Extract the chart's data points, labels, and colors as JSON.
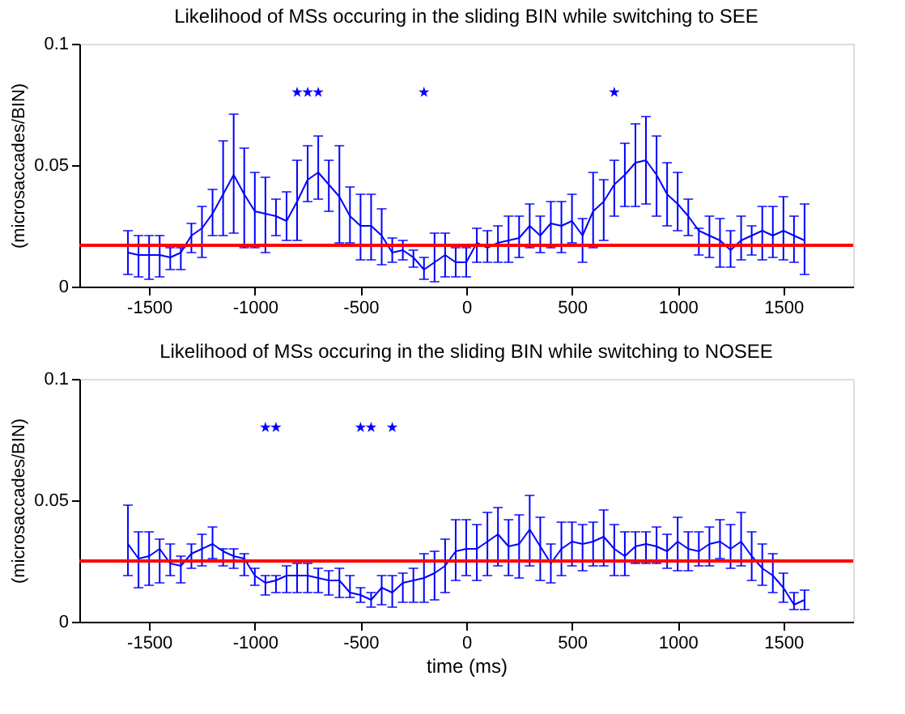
{
  "chart_data": [
    {
      "type": "line",
      "title": "Likelihood of MSs occuring in the sliding BIN while switching to SEE",
      "ylabel": "(microsaccades/BIN)",
      "xlim": [
        -1830,
        1830
      ],
      "xticks": [
        -1500,
        -1000,
        -500,
        0,
        500,
        1000,
        1500
      ],
      "ylim": [
        0,
        0.1
      ],
      "yticks": [
        0,
        0.05,
        0.1
      ],
      "grid": false,
      "ref_lines": [
        {
          "axis": "y",
          "value": 0.017,
          "color": "#ff0000",
          "line_style": "solid"
        }
      ],
      "series": [
        {
          "type": "line",
          "color": "#0000ff",
          "marker": "none",
          "line_style": "solid",
          "x": [
            -1600,
            -1550,
            -1500,
            -1450,
            -1400,
            -1350,
            -1300,
            -1250,
            -1200,
            -1150,
            -1100,
            -1050,
            -1000,
            -950,
            -900,
            -850,
            -800,
            -750,
            -700,
            -650,
            -600,
            -550,
            -500,
            -450,
            -400,
            -350,
            -300,
            -250,
            -200,
            -150,
            -100,
            -50,
            0,
            50,
            100,
            150,
            200,
            250,
            300,
            350,
            400,
            450,
            500,
            550,
            600,
            650,
            700,
            750,
            800,
            850,
            900,
            950,
            1000,
            1050,
            1100,
            1150,
            1200,
            1250,
            1300,
            1350,
            1400,
            1450,
            1500,
            1550,
            1600
          ],
          "values": [
            0.014,
            0.013,
            0.013,
            0.013,
            0.012,
            0.014,
            0.021,
            0.024,
            0.03,
            0.038,
            0.046,
            0.038,
            0.031,
            0.03,
            0.029,
            0.027,
            0.035,
            0.044,
            0.047,
            0.042,
            0.037,
            0.029,
            0.025,
            0.025,
            0.021,
            0.014,
            0.015,
            0.012,
            0.007,
            0.01,
            0.013,
            0.01,
            0.01,
            0.018,
            0.016,
            0.018,
            0.019,
            0.02,
            0.025,
            0.021,
            0.026,
            0.025,
            0.027,
            0.021,
            0.031,
            0.035,
            0.042,
            0.046,
            0.051,
            0.052,
            0.046,
            0.038,
            0.034,
            0.029,
            0.023,
            0.021,
            0.019,
            0.015,
            0.019,
            0.021,
            0.023,
            0.021,
            0.023,
            0.021,
            0.019
          ],
          "errors": [
            [
              0.005,
              0.023
            ],
            [
              0.004,
              0.021
            ],
            [
              0.003,
              0.021
            ],
            [
              0.004,
              0.021
            ],
            [
              0.007,
              0.016
            ],
            [
              0.007,
              0.016
            ],
            [
              0.014,
              0.026
            ],
            [
              0.012,
              0.033
            ],
            [
              0.021,
              0.04
            ],
            [
              0.021,
              0.06
            ],
            [
              0.022,
              0.071
            ],
            [
              0.016,
              0.057
            ],
            [
              0.016,
              0.047
            ],
            [
              0.014,
              0.045
            ],
            [
              0.021,
              0.036
            ],
            [
              0.019,
              0.039
            ],
            [
              0.019,
              0.052
            ],
            [
              0.035,
              0.058
            ],
            [
              0.036,
              0.062
            ],
            [
              0.031,
              0.052
            ],
            [
              0.018,
              0.058
            ],
            [
              0.018,
              0.041
            ],
            [
              0.011,
              0.038
            ],
            [
              0.011,
              0.038
            ],
            [
              0.009,
              0.032
            ],
            [
              0.01,
              0.02
            ],
            [
              0.011,
              0.019
            ],
            [
              0.008,
              0.015
            ],
            [
              0.003,
              0.012
            ],
            [
              0.002,
              0.022
            ],
            [
              0.004,
              0.022
            ],
            [
              0.004,
              0.016
            ],
            [
              0.004,
              0.016
            ],
            [
              0.01,
              0.024
            ],
            [
              0.01,
              0.023
            ],
            [
              0.01,
              0.025
            ],
            [
              0.01,
              0.029
            ],
            [
              0.012,
              0.029
            ],
            [
              0.016,
              0.034
            ],
            [
              0.014,
              0.029
            ],
            [
              0.016,
              0.035
            ],
            [
              0.014,
              0.035
            ],
            [
              0.018,
              0.038
            ],
            [
              0.01,
              0.028
            ],
            [
              0.016,
              0.047
            ],
            [
              0.019,
              0.044
            ],
            [
              0.029,
              0.052
            ],
            [
              0.033,
              0.059
            ],
            [
              0.033,
              0.067
            ],
            [
              0.034,
              0.07
            ],
            [
              0.029,
              0.062
            ],
            [
              0.025,
              0.051
            ],
            [
              0.023,
              0.047
            ],
            [
              0.021,
              0.036
            ],
            [
              0.013,
              0.024
            ],
            [
              0.012,
              0.029
            ],
            [
              0.008,
              0.028
            ],
            [
              0.008,
              0.023
            ],
            [
              0.011,
              0.029
            ],
            [
              0.013,
              0.025
            ],
            [
              0.011,
              0.033
            ],
            [
              0.012,
              0.033
            ],
            [
              0.011,
              0.037
            ],
            [
              0.01,
              0.029
            ],
            [
              0.005,
              0.034
            ]
          ]
        },
        {
          "type": "scatter",
          "color": "#0000ff",
          "marker": "star",
          "x": [
            -800,
            -750,
            -700,
            -200,
            700
          ],
          "values": [
            0.08,
            0.08,
            0.08,
            0.08,
            0.08
          ]
        }
      ]
    },
    {
      "type": "line",
      "title": "Likelihood of MSs occuring in the sliding BIN while switching to NOSEE",
      "xlabel": "time (ms)",
      "ylabel": "(microsaccades/BIN)",
      "xlim": [
        -1830,
        1830
      ],
      "xticks": [
        -1500,
        -1000,
        -500,
        0,
        500,
        1000,
        1500
      ],
      "ylim": [
        0,
        0.1
      ],
      "yticks": [
        0,
        0.05,
        0.1
      ],
      "grid": false,
      "ref_lines": [
        {
          "axis": "y",
          "value": 0.025,
          "color": "#ff0000",
          "line_style": "solid"
        }
      ],
      "series": [
        {
          "type": "line",
          "color": "#0000ff",
          "marker": "none",
          "line_style": "solid",
          "x": [
            -1600,
            -1550,
            -1500,
            -1450,
            -1400,
            -1350,
            -1300,
            -1250,
            -1200,
            -1150,
            -1100,
            -1050,
            -1000,
            -950,
            -900,
            -850,
            -800,
            -750,
            -700,
            -650,
            -600,
            -550,
            -500,
            -450,
            -400,
            -350,
            -300,
            -250,
            -200,
            -150,
            -100,
            -50,
            0,
            50,
            100,
            150,
            200,
            250,
            300,
            350,
            400,
            450,
            500,
            550,
            600,
            650,
            700,
            750,
            800,
            850,
            900,
            950,
            1000,
            1050,
            1100,
            1150,
            1200,
            1250,
            1300,
            1350,
            1400,
            1450,
            1500,
            1550,
            1600
          ],
          "values": [
            0.032,
            0.026,
            0.027,
            0.03,
            0.024,
            0.023,
            0.028,
            0.03,
            0.032,
            0.029,
            0.027,
            0.026,
            0.019,
            0.016,
            0.017,
            0.019,
            0.019,
            0.019,
            0.018,
            0.017,
            0.017,
            0.012,
            0.011,
            0.009,
            0.014,
            0.012,
            0.016,
            0.017,
            0.018,
            0.02,
            0.023,
            0.029,
            0.03,
            0.03,
            0.033,
            0.036,
            0.031,
            0.032,
            0.038,
            0.031,
            0.024,
            0.03,
            0.033,
            0.032,
            0.033,
            0.035,
            0.03,
            0.027,
            0.031,
            0.032,
            0.031,
            0.029,
            0.033,
            0.03,
            0.029,
            0.032,
            0.033,
            0.03,
            0.033,
            0.027,
            0.022,
            0.019,
            0.014,
            0.007,
            0.009
          ],
          "errors": [
            [
              0.019,
              0.048
            ],
            [
              0.014,
              0.037
            ],
            [
              0.015,
              0.037
            ],
            [
              0.016,
              0.034
            ],
            [
              0.019,
              0.032
            ],
            [
              0.016,
              0.027
            ],
            [
              0.022,
              0.032
            ],
            [
              0.023,
              0.036
            ],
            [
              0.026,
              0.039
            ],
            [
              0.023,
              0.03
            ],
            [
              0.022,
              0.03
            ],
            [
              0.019,
              0.028
            ],
            [
              0.015,
              0.022
            ],
            [
              0.011,
              0.019
            ],
            [
              0.012,
              0.019
            ],
            [
              0.012,
              0.023
            ],
            [
              0.012,
              0.024
            ],
            [
              0.012,
              0.024
            ],
            [
              0.012,
              0.022
            ],
            [
              0.011,
              0.021
            ],
            [
              0.01,
              0.022
            ],
            [
              0.01,
              0.019
            ],
            [
              0.008,
              0.014
            ],
            [
              0.006,
              0.012
            ],
            [
              0.007,
              0.019
            ],
            [
              0.006,
              0.019
            ],
            [
              0.008,
              0.02
            ],
            [
              0.008,
              0.022
            ],
            [
              0.008,
              0.028
            ],
            [
              0.009,
              0.029
            ],
            [
              0.012,
              0.034
            ],
            [
              0.017,
              0.042
            ],
            [
              0.019,
              0.042
            ],
            [
              0.017,
              0.04
            ],
            [
              0.019,
              0.045
            ],
            [
              0.023,
              0.047
            ],
            [
              0.019,
              0.042
            ],
            [
              0.018,
              0.044
            ],
            [
              0.023,
              0.052
            ],
            [
              0.017,
              0.043
            ],
            [
              0.016,
              0.032
            ],
            [
              0.019,
              0.041
            ],
            [
              0.023,
              0.041
            ],
            [
              0.021,
              0.04
            ],
            [
              0.023,
              0.041
            ],
            [
              0.023,
              0.046
            ],
            [
              0.019,
              0.04
            ],
            [
              0.019,
              0.037
            ],
            [
              0.024,
              0.037
            ],
            [
              0.024,
              0.037
            ],
            [
              0.024,
              0.039
            ],
            [
              0.022,
              0.036
            ],
            [
              0.021,
              0.043
            ],
            [
              0.021,
              0.037
            ],
            [
              0.023,
              0.037
            ],
            [
              0.023,
              0.039
            ],
            [
              0.026,
              0.042
            ],
            [
              0.022,
              0.04
            ],
            [
              0.023,
              0.045
            ],
            [
              0.017,
              0.037
            ],
            [
              0.015,
              0.032
            ],
            [
              0.012,
              0.028
            ],
            [
              0.008,
              0.02
            ],
            [
              0.005,
              0.012
            ],
            [
              0.005,
              0.013
            ]
          ]
        },
        {
          "type": "scatter",
          "color": "#0000ff",
          "marker": "star",
          "x": [
            -950,
            -900,
            -500,
            -450,
            -350
          ],
          "values": [
            0.08,
            0.08,
            0.08,
            0.08,
            0.08
          ]
        }
      ]
    }
  ]
}
